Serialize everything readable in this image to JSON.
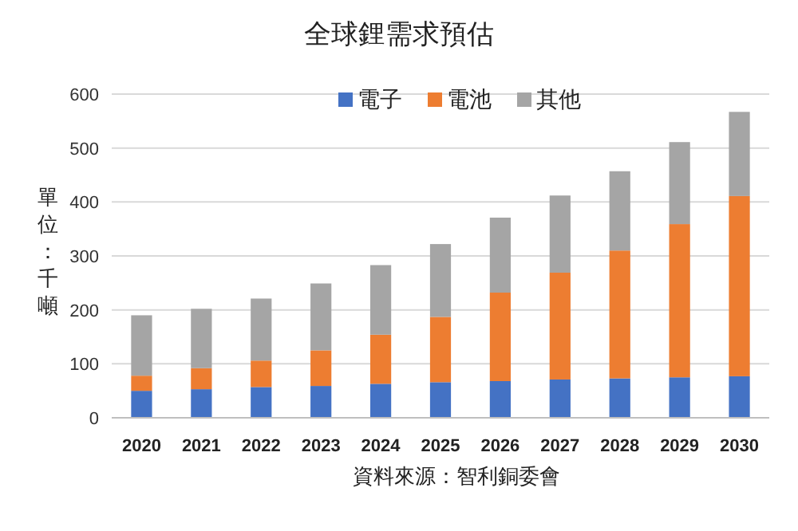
{
  "chart_data": {
    "type": "bar",
    "stacked": true,
    "title": "全球鋰需求預估",
    "ylabel": "單位：千噸",
    "categories": [
      "2020",
      "2021",
      "2022",
      "2023",
      "2024",
      "2025",
      "2026",
      "2027",
      "2028",
      "2029",
      "2030"
    ],
    "series": [
      {
        "name": "電子",
        "color": "#4472c4",
        "values": [
          50,
          53,
          57,
          59,
          63,
          66,
          68,
          71,
          73,
          75,
          77
        ]
      },
      {
        "name": "電池",
        "color": "#ed7d31",
        "values": [
          28,
          39,
          49,
          66,
          91,
          121,
          164,
          198,
          237,
          284,
          334
        ]
      },
      {
        "name": "其他",
        "color": "#a5a5a5",
        "values": [
          112,
          110,
          115,
          124,
          129,
          135,
          139,
          143,
          147,
          152,
          156
        ]
      }
    ],
    "ylim": [
      0,
      600
    ],
    "yticks": [
      0,
      100,
      200,
      300,
      400,
      500,
      600
    ],
    "grid": "y",
    "legend": "top",
    "annotations": [
      "資料來源：智利銅委會"
    ]
  }
}
